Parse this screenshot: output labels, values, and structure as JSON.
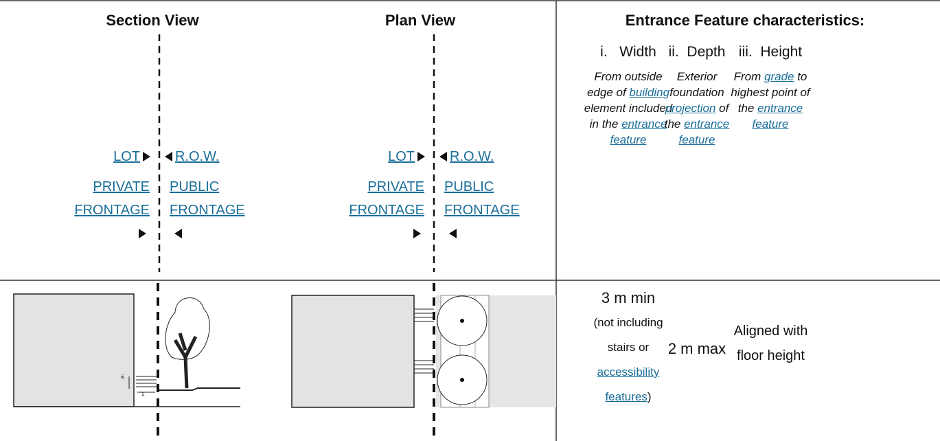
{
  "views": [
    {
      "title": "Section View",
      "lot": "LOT",
      "row": "R.O.W.",
      "private": [
        "PRIVATE",
        "FRONTAGE"
      ],
      "public": [
        "PUBLIC",
        "FRONTAGE"
      ]
    },
    {
      "title": "Plan View",
      "lot": "LOT",
      "row": "R.O.W.",
      "private": [
        "PRIVATE",
        "FRONTAGE"
      ],
      "public": [
        "PUBLIC",
        "FRONTAGE"
      ]
    }
  ],
  "section_diagram_labels": [
    "iii.",
    "ii."
  ],
  "characteristics": {
    "title": "Entrance Feature characteristics:",
    "columns": [
      {
        "label": "i.   Width",
        "description": [
          {
            "text": "From outside edge of "
          },
          {
            "text": "building",
            "link": true
          },
          {
            "text": " element included in the "
          },
          {
            "text": "entrance feature",
            "link": true
          }
        ]
      },
      {
        "label": "ii.  Depth",
        "description": [
          {
            "text": "Exterior foundation "
          },
          {
            "text": "projection",
            "link": true
          },
          {
            "text": " of the "
          },
          {
            "text": "entrance feature",
            "link": true
          }
        ]
      },
      {
        "label": "iii.  Height",
        "description": [
          {
            "text": "From "
          },
          {
            "text": "grade",
            "link": true
          },
          {
            "text": " to highest point of the "
          },
          {
            "text": "entrance feature",
            "link": true
          }
        ]
      }
    ]
  },
  "values": [
    {
      "main": "3 m min",
      "note": [
        {
          "text": "(not including stairs or "
        },
        {
          "text": "accessibility features",
          "link": true
        },
        {
          "text": ")"
        }
      ]
    },
    {
      "main": "2 m max"
    },
    {
      "main": "Aligned with floor height"
    }
  ]
}
